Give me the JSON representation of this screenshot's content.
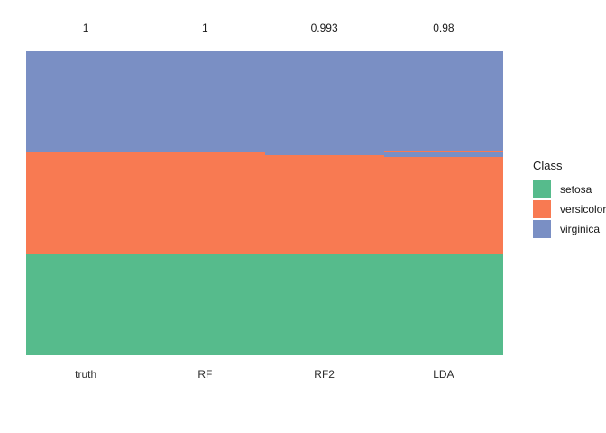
{
  "chart_data": {
    "type": "heatmap",
    "title": "",
    "xlabel": "",
    "ylabel": "",
    "legend_position": "right",
    "n_samples": 150,
    "legend": {
      "title": "Class"
    },
    "classes": [
      {
        "name": "setosa",
        "color": "#56BB8C"
      },
      {
        "name": "versicolor",
        "color": "#F87A52"
      },
      {
        "name": "virginica",
        "color": "#7A8FC4"
      }
    ],
    "class_colors": {
      "setosa": "#56BB8C",
      "versicolor": "#F87A52",
      "virginica": "#7A8FC4"
    },
    "columns": [
      {
        "name": "truth",
        "accuracy": "1",
        "segments": [
          {
            "class": "virginica",
            "count": 50
          },
          {
            "class": "versicolor",
            "count": 50
          },
          {
            "class": "setosa",
            "count": 50
          }
        ]
      },
      {
        "name": "RF",
        "accuracy": "1",
        "segments": [
          {
            "class": "virginica",
            "count": 50
          },
          {
            "class": "versicolor",
            "count": 50
          },
          {
            "class": "setosa",
            "count": 50
          }
        ]
      },
      {
        "name": "RF2",
        "accuracy": "0.993",
        "segments": [
          {
            "class": "virginica",
            "count": 51
          },
          {
            "class": "versicolor",
            "count": 49
          },
          {
            "class": "setosa",
            "count": 50
          }
        ]
      },
      {
        "name": "LDA",
        "accuracy": "0.98",
        "segments": [
          {
            "class": "virginica",
            "count": 49
          },
          {
            "class": "versicolor",
            "count": 1
          },
          {
            "class": "virginica",
            "count": 2
          },
          {
            "class": "versicolor",
            "count": 48
          },
          {
            "class": "setosa",
            "count": 50
          }
        ]
      }
    ]
  }
}
